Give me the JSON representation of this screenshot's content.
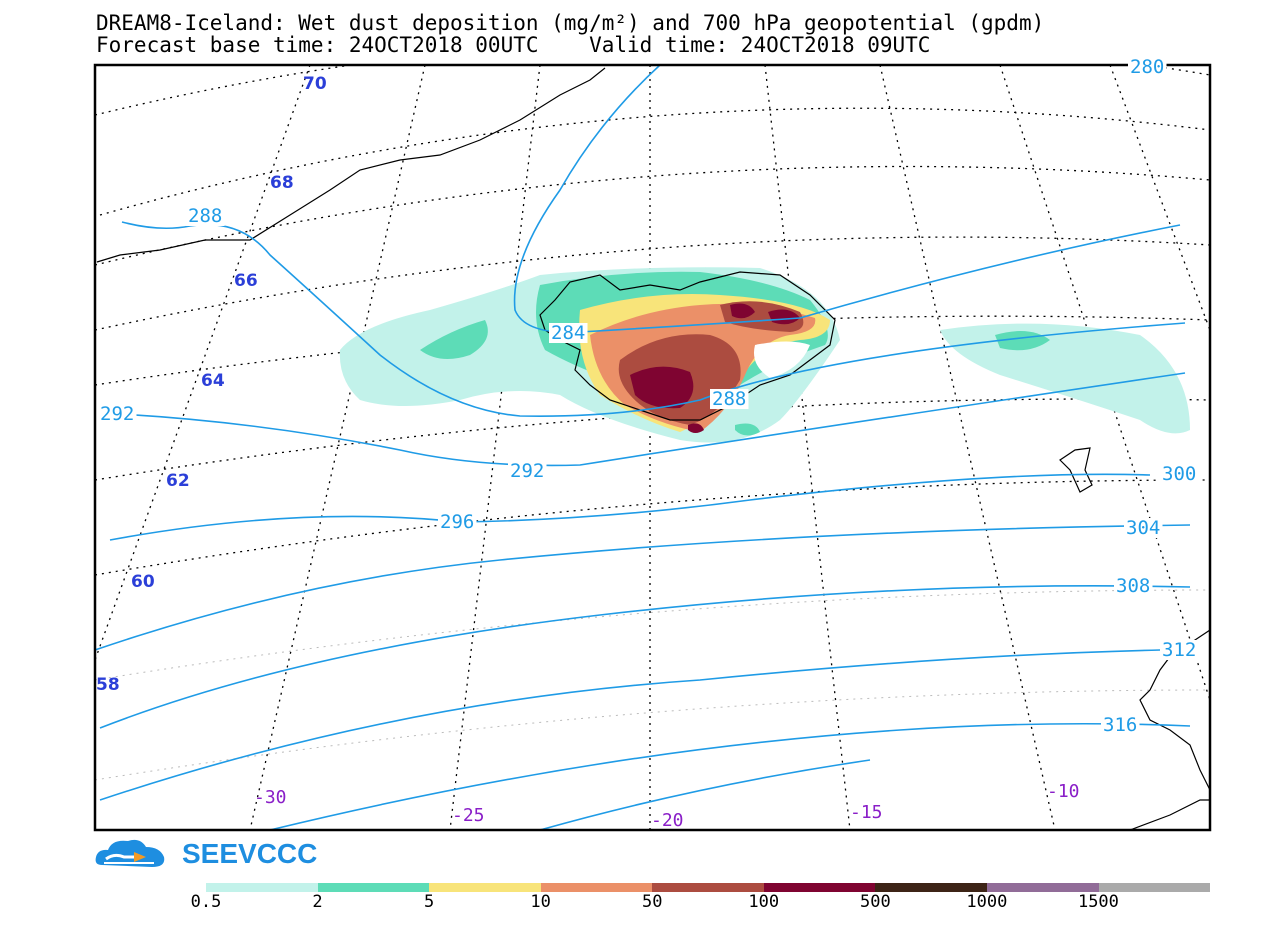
{
  "title_line1": "DREAM8-Iceland: Wet dust deposition (mg/m²) and 700 hPa geopotential (gpdm)",
  "title_line2": "Forecast base time: 24OCT2018 00UTC    Valid time: 24OCT2018 09UTC",
  "brand": "SEEVCCC",
  "colors": {
    "contour": "#1f9be6",
    "lat_label": "#2b3fd8",
    "lon_label": "#8a1fc8",
    "frame": "#000000"
  },
  "latitude_labels": [
    "70",
    "68",
    "66",
    "64",
    "62",
    "60",
    "58"
  ],
  "longitude_labels": [
    "-30",
    "-25",
    "-20",
    "-15",
    "-10"
  ],
  "contour_labels": [
    "280",
    "288",
    "284",
    "288",
    "292",
    "292",
    "296",
    "300",
    "304",
    "308",
    "312",
    "316"
  ],
  "legend": {
    "colors": [
      "#c2f2ea",
      "#5ddcb7",
      "#f8e47a",
      "#eb9068",
      "#ac4c40",
      "#7f0431",
      "#3d2416",
      "#916c98",
      "#aaaaaa"
    ],
    "labels": [
      "0.5",
      "2",
      "5",
      "10",
      "50",
      "100",
      "500",
      "1000",
      "1500"
    ]
  }
}
